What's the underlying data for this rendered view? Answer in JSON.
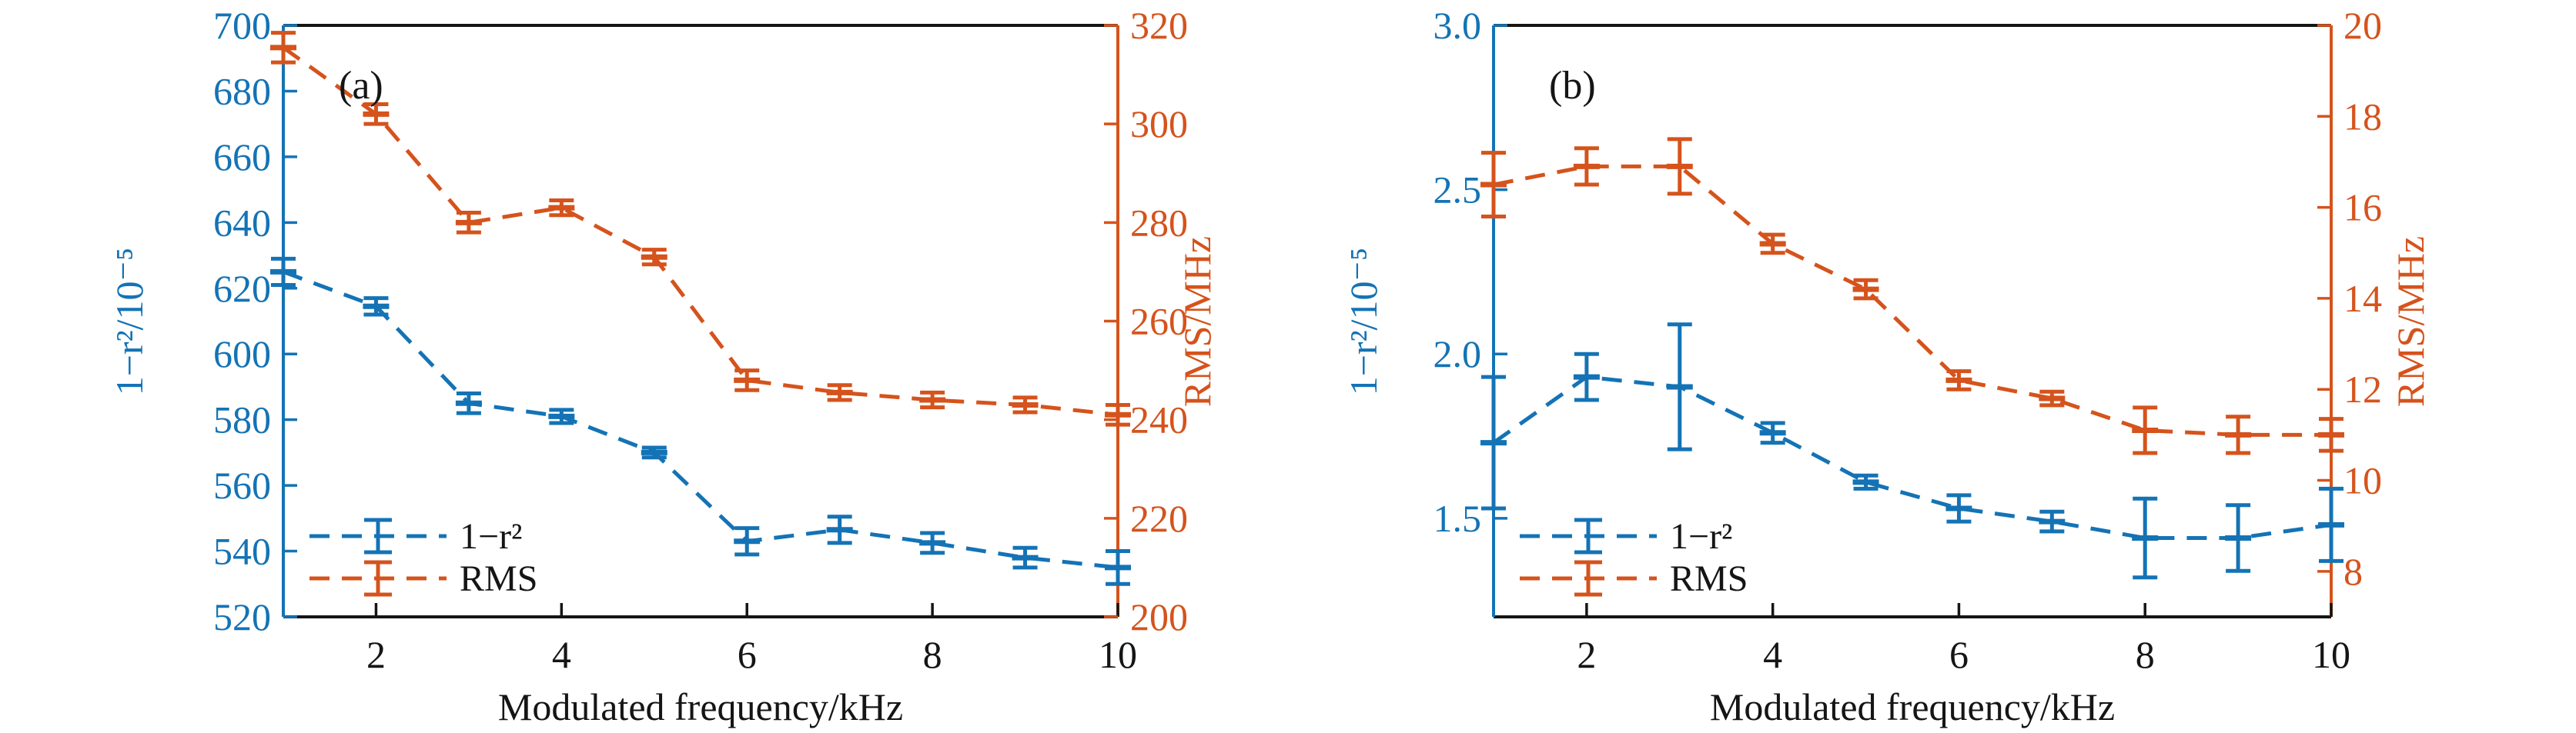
{
  "figure": {
    "background": "#ffffff",
    "accent_blue": "#1473b5",
    "accent_orange": "#d5531c"
  },
  "chart_data": [
    {
      "type": "line",
      "panel_label": "(a)",
      "xlabel": "Modulated frequency/kHz",
      "x": [
        1,
        2,
        3,
        4,
        5,
        6,
        7,
        8,
        9,
        10
      ],
      "xlim": [
        1,
        10
      ],
      "xtick_values": [
        2,
        4,
        6,
        8,
        10
      ],
      "xtick_labels": [
        "2",
        "4",
        "6",
        "8",
        "10"
      ],
      "grid": false,
      "legend_position": "lower left",
      "axis_left": {
        "label": "1−r²/10⁻⁵",
        "color": "#1473b5",
        "lim": [
          520,
          700
        ],
        "tick_values": [
          520,
          540,
          560,
          580,
          600,
          620,
          640,
          660,
          680,
          700
        ],
        "tick_labels": [
          "520",
          "540",
          "560",
          "580",
          "600",
          "620",
          "640",
          "660",
          "680",
          "700"
        ]
      },
      "axis_right": {
        "label": "RMS/MHz",
        "color": "#d5531c",
        "lim": [
          200,
          320
        ],
        "tick_values": [
          200,
          220,
          240,
          260,
          280,
          300,
          320
        ],
        "tick_labels": [
          "200",
          "220",
          "240",
          "260",
          "280",
          "300",
          "320"
        ]
      },
      "series": [
        {
          "name": "1−r²",
          "axis": "left",
          "color": "#1473b5",
          "linestyle": "dashed",
          "values": [
            625,
            614.5,
            585,
            581,
            570,
            543,
            546.5,
            542.5,
            538,
            535
          ],
          "errors": [
            4,
            2.5,
            3,
            2,
            1.5,
            4,
            4,
            3,
            3,
            5
          ]
        },
        {
          "name": "RMS",
          "axis": "right",
          "color": "#d5531c",
          "linestyle": "dashed",
          "values": [
            315.5,
            302,
            280,
            283,
            273,
            248,
            245.5,
            244,
            243,
            241
          ],
          "errors": [
            3,
            2,
            2,
            1.5,
            1.5,
            2,
            1.5,
            1.5,
            1.5,
            2
          ]
        }
      ]
    },
    {
      "type": "line",
      "panel_label": "(b)",
      "xlabel": "Modulated frequency/kHz",
      "x": [
        1,
        2,
        3,
        4,
        5,
        6,
        7,
        8,
        9,
        10
      ],
      "xlim": [
        1,
        10
      ],
      "xtick_values": [
        2,
        4,
        6,
        8,
        10
      ],
      "xtick_labels": [
        "2",
        "4",
        "6",
        "8",
        "10"
      ],
      "grid": false,
      "legend_position": "lower left",
      "axis_left": {
        "label": "1−r²/10⁻⁵",
        "color": "#1473b5",
        "lim": [
          1.2,
          3.0
        ],
        "tick_values": [
          1.5,
          2.0,
          2.5,
          3.0
        ],
        "tick_labels": [
          "1.5",
          "2.0",
          "2.5",
          "3.0"
        ]
      },
      "axis_right": {
        "label": "RMS/MHz",
        "color": "#d5531c",
        "lim": [
          7,
          20
        ],
        "tick_values": [
          8,
          10,
          12,
          14,
          16,
          18,
          20
        ],
        "tick_labels": [
          "8",
          "10",
          "12",
          "14",
          "16",
          "18",
          "20"
        ]
      },
      "series": [
        {
          "name": "1−r²",
          "axis": "left",
          "color": "#1473b5",
          "linestyle": "dashed",
          "values": [
            1.73,
            1.93,
            1.9,
            1.76,
            1.61,
            1.53,
            1.49,
            1.44,
            1.44,
            1.48
          ],
          "errors": [
            0.2,
            0.07,
            0.19,
            0.03,
            0.02,
            0.04,
            0.03,
            0.12,
            0.1,
            0.11
          ]
        },
        {
          "name": "RMS",
          "axis": "right",
          "color": "#d5531c",
          "linestyle": "dashed",
          "values": [
            16.5,
            16.9,
            16.9,
            15.2,
            14.2,
            12.2,
            11.8,
            11.1,
            11.0,
            11.0
          ],
          "errors": [
            0.7,
            0.4,
            0.6,
            0.2,
            0.2,
            0.2,
            0.15,
            0.5,
            0.4,
            0.35
          ]
        }
      ]
    }
  ]
}
